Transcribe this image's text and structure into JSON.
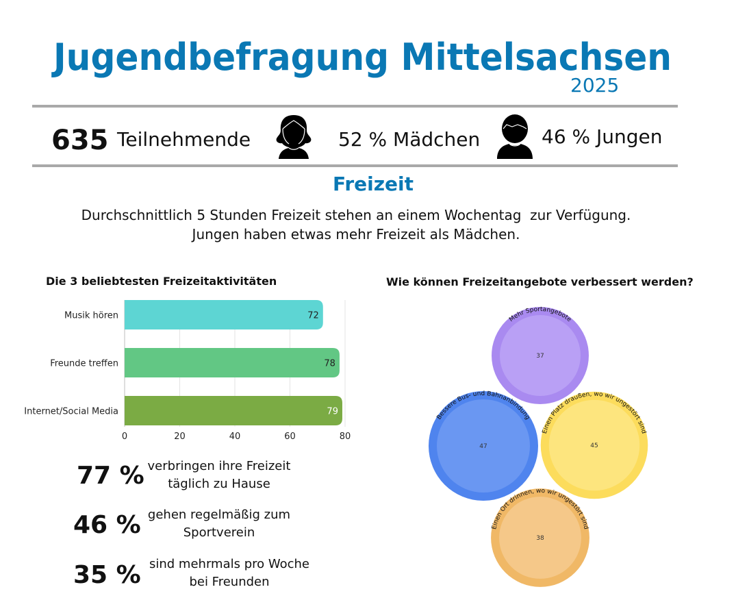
{
  "header": {
    "title": "Jugendbefragung Mittelsachsen",
    "year": "2025"
  },
  "stats_row": {
    "participants_count": "635",
    "participants_label": "Teilnehmende",
    "girls_icon": "girl-icon",
    "girls_text": "52 % Mädchen",
    "boys_icon": "boy-icon",
    "boys_text": "46 % Jungen"
  },
  "section": {
    "title": "Freizeit",
    "intro_line1": "Durchschnittlich 5 Stunden Freizeit stehen an einem Wochentag  zur Verfügung.",
    "intro_line2": "Jungen haben etwas mehr Freizeit als Mädchen."
  },
  "facts": [
    {
      "value": "77 %",
      "line1": "verbringen ihre Freizeit",
      "line2": "täglich zu Hause"
    },
    {
      "value": "46 %",
      "line1": "gehen regelmäßig zum",
      "line2": "Sportverein"
    },
    {
      "value": "35 %",
      "line1": "sind mehrmals pro Woche",
      "line2": "bei Freunden"
    }
  ],
  "chart_data": [
    {
      "type": "bar",
      "orientation": "horizontal",
      "title": "Die 3 beliebtesten Freizeitaktivitäten",
      "categories": [
        "Musik hören",
        "Freunde treffen",
        "Internet/Social Media"
      ],
      "values": [
        72,
        78,
        79
      ],
      "data_labels": [
        "72",
        "78",
        "79"
      ],
      "colors": [
        "#5dd5d3",
        "#62c784",
        "#7bab44"
      ],
      "label_colors": [
        "#222222",
        "#222222",
        "#ffffff"
      ],
      "xlim": [
        0,
        80
      ],
      "xticks": [
        "0",
        "20",
        "40",
        "60",
        "80"
      ],
      "grid": true,
      "xlabel": "",
      "ylabel": ""
    },
    {
      "type": "bubble",
      "title": "Wie können Freizeitangebote verbessert werden?",
      "items": [
        {
          "label": "Mehr Sportangebote",
          "value": 37,
          "value_label": "37",
          "outer_color": "#a98af0",
          "inner_color": "#b9a0f5"
        },
        {
          "label": "Bessere Bus- und Bahnanbindung",
          "value": 47,
          "value_label": "47",
          "outer_color": "#4f84ee",
          "inner_color": "#6a97f2"
        },
        {
          "label": "Einen Platz draußen, wo wir ungestört sind",
          "value": 45,
          "value_label": "45",
          "outer_color": "#fcdc5c",
          "inner_color": "#fde57e"
        },
        {
          "label": "Einen Ort drinnen, wo wir ungestört sind",
          "value": 38,
          "value_label": "38",
          "outer_color": "#f0b866",
          "inner_color": "#f5c889"
        }
      ]
    }
  ]
}
